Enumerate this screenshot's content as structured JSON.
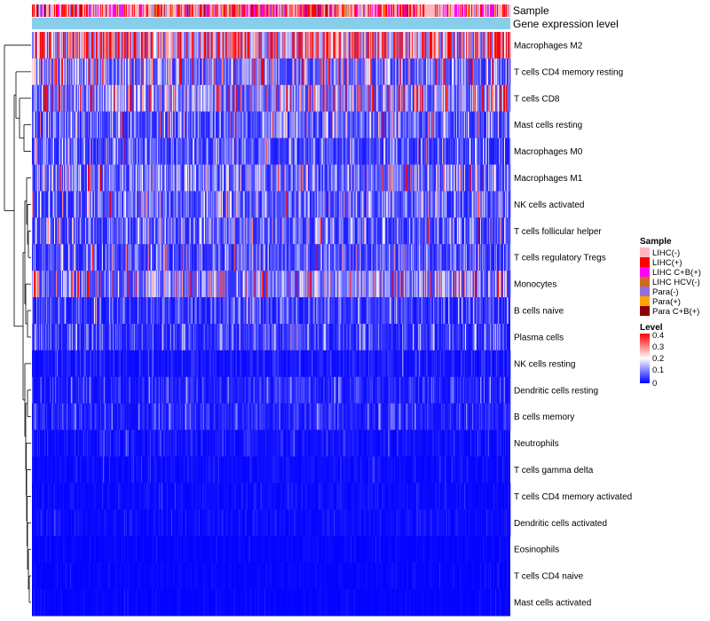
{
  "chart_data": {
    "type": "heatmap",
    "title": "",
    "annotation_labels": [
      "Sample",
      "Gene expression level"
    ],
    "rows": [
      "Macrophages M2",
      "T cells CD4 memory resting",
      "T cells CD8",
      "Mast cells resting",
      "Macrophages M0",
      "Macrophages M1",
      "NK cells activated",
      "T cells follicular helper",
      "T cells regulatory  Tregs",
      "Monocytes",
      "B cells naive",
      "Plasma cells",
      "NK cells resting",
      "Dendritic cells resting",
      "B cells memory",
      "Neutrophils",
      "T cells gamma delta",
      "T cells CD4 memory activated",
      "Dendritic cells activated",
      "Eosinophils",
      "T cells CD4 naive",
      "Mast cells activated"
    ],
    "row_mean_level": [
      0.3,
      0.12,
      0.15,
      0.09,
      0.07,
      0.1,
      0.09,
      0.08,
      0.07,
      0.13,
      0.05,
      0.05,
      0.02,
      0.03,
      0.03,
      0.015,
      0.01,
      0.01,
      0.01,
      0.005,
      0.005,
      0.005
    ],
    "n_samples": 540,
    "legend_sample": {
      "title": "Sample",
      "items": [
        {
          "label": "LIHC(-)",
          "color": "#FFB6C1"
        },
        {
          "label": "LIHC(+)",
          "color": "#FF0000"
        },
        {
          "label": "LIHC C+B(+)",
          "color": "#FF00FF"
        },
        {
          "label": "LIHC HCV(-)",
          "color": "#D2691E"
        },
        {
          "label": "Para(-)",
          "color": "#9370DB"
        },
        {
          "label": "Para(+)",
          "color": "#FFA500"
        },
        {
          "label": "Para C+B(+)",
          "color": "#8B0000"
        }
      ]
    },
    "legend_level": {
      "title": "Level",
      "range": [
        0,
        0.4
      ],
      "ticks": [
        "0.4",
        "0.3",
        "0.2",
        "0.1",
        "0"
      ],
      "colors": [
        "#0000FF",
        "#FFFFFF",
        "#FF0000"
      ]
    },
    "expression_bar_color": "#87CEEB"
  }
}
